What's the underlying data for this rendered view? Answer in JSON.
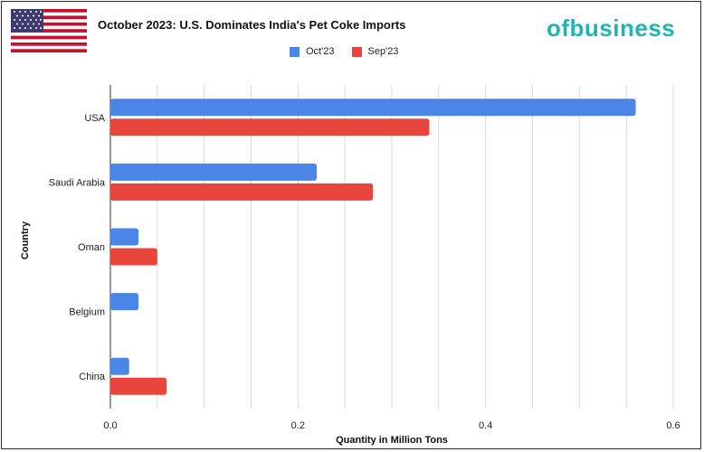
{
  "header": {
    "title": "October 2023: U.S. Dominates India's Pet Coke Imports",
    "brand": "ofbusiness",
    "flag": "us-flag"
  },
  "colors": {
    "oct": "#4a86e8",
    "sep": "#e8453c",
    "brand": "#1fb5b5"
  },
  "chart_data": {
    "type": "bar",
    "orientation": "horizontal",
    "title": "October 2023: U.S. Dominates India's Pet Coke Imports",
    "categories": [
      "USA",
      "Saudi Arabia",
      "Oman",
      "Belgium",
      "China"
    ],
    "series": [
      {
        "name": "Oct'23",
        "values": [
          0.56,
          0.22,
          0.03,
          0.03,
          0.02
        ]
      },
      {
        "name": "Sep'23",
        "values": [
          0.34,
          0.28,
          0.05,
          0,
          0.06
        ]
      }
    ],
    "xlabel": "Quantity in Million Tons",
    "ylabel": "Country",
    "xlim": [
      0,
      0.6
    ],
    "xticks": [
      "0.0",
      "0.2",
      "0.4",
      "0.6"
    ],
    "legend": "top-center"
  }
}
